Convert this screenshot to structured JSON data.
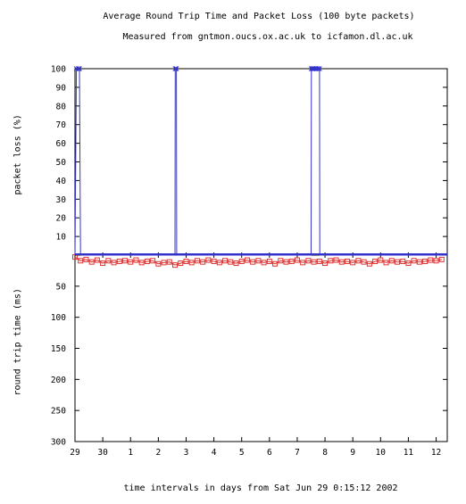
{
  "chart_data": {
    "type": "line",
    "title": "Average Round Trip Time and Packet Loss (100 byte packets)",
    "subtitle": "Measured from gntmon.oucs.ox.ac.uk to icfamon.dl.ac.uk",
    "xlabel": "time intervals in days from Sat Jun 29  0:15:12 2002",
    "x_ticks": [
      "29",
      "30",
      "1",
      "2",
      "3",
      "4",
      "5",
      "6",
      "7",
      "8",
      "9",
      "10",
      "11",
      "12"
    ],
    "xlim": [
      0,
      13.4
    ],
    "top_panel": {
      "ylabel": "packet loss (%)",
      "ylim": [
        0,
        100
      ],
      "y_ticks": [
        "10",
        "20",
        "30",
        "40",
        "50",
        "60",
        "70",
        "80",
        "90",
        "100"
      ],
      "color": "#3333cc",
      "series": {
        "x": [
          0.0,
          0.05,
          0.12,
          0.16,
          0.2,
          0.6,
          1.0,
          1.6,
          2.2,
          3.0,
          3.6,
          3.61,
          3.65,
          3.66,
          4.2,
          5.0,
          6.0,
          7.0,
          8.0,
          8.5,
          8.51,
          8.55,
          8.56,
          8.6,
          8.65,
          8.7,
          8.75,
          8.8,
          8.81,
          9.5,
          10.5,
          11.5,
          12.5,
          13.4
        ],
        "y": [
          0,
          100,
          100,
          100,
          0,
          0,
          0,
          0,
          0,
          0,
          0,
          100,
          100,
          0,
          0,
          0,
          0,
          0,
          0,
          0,
          100,
          100,
          100,
          100,
          100,
          100,
          100,
          100,
          0,
          0,
          0,
          0,
          0,
          0
        ]
      }
    },
    "bottom_panel": {
      "ylabel": "round trip time (ms)",
      "ylim": [
        0,
        300
      ],
      "y_ticks": [
        "50",
        "100",
        "150",
        "200",
        "250",
        "300"
      ],
      "color": "#dd3333",
      "series": {
        "x": [
          0.0,
          0.2,
          0.4,
          0.6,
          0.8,
          1.0,
          1.2,
          1.4,
          1.6,
          1.8,
          2.0,
          2.2,
          2.4,
          2.6,
          2.8,
          3.0,
          3.2,
          3.4,
          3.6,
          3.8,
          4.0,
          4.2,
          4.4,
          4.6,
          4.8,
          5.0,
          5.2,
          5.4,
          5.6,
          5.8,
          6.0,
          6.2,
          6.4,
          6.6,
          6.8,
          7.0,
          7.2,
          7.4,
          7.6,
          7.8,
          8.0,
          8.2,
          8.4,
          8.6,
          8.8,
          9.0,
          9.2,
          9.4,
          9.6,
          9.8,
          10.0,
          10.2,
          10.4,
          10.6,
          10.8,
          11.0,
          11.2,
          11.4,
          11.6,
          11.8,
          12.0,
          12.2,
          12.4,
          12.6,
          12.8,
          13.0,
          13.2
        ],
        "y": [
          3,
          9,
          7,
          11,
          8,
          13,
          9,
          12,
          10,
          9,
          11,
          8,
          12,
          10,
          9,
          14,
          12,
          11,
          16,
          13,
          10,
          12,
          9,
          11,
          8,
          10,
          12,
          9,
          11,
          13,
          10,
          8,
          11,
          9,
          12,
          10,
          14,
          9,
          11,
          10,
          8,
          12,
          9,
          11,
          10,
          13,
          9,
          8,
          11,
          10,
          12,
          9,
          11,
          14,
          10,
          8,
          12,
          9,
          11,
          10,
          13,
          9,
          11,
          10,
          8,
          9,
          7
        ]
      }
    }
  }
}
